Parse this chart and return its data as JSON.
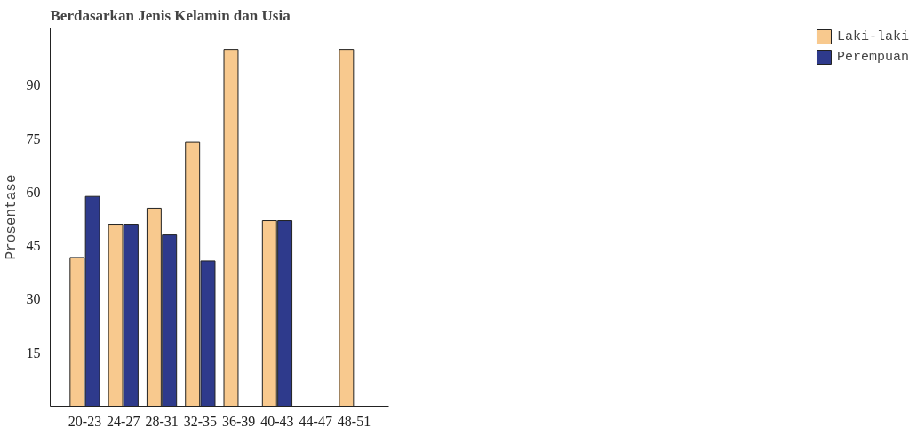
{
  "chart_data": {
    "type": "bar",
    "title": "Berdasarkan Jenis Kelamin dan Usia",
    "ylabel": "Prosentase",
    "categories": [
      "20-23",
      "24-27",
      "28-31",
      "32-35",
      "36-39",
      "40-43",
      "44-47",
      "48-51"
    ],
    "series": [
      {
        "name": "Laki-laki",
        "color": "#f8c98e",
        "values": [
          41.7,
          51,
          55.5,
          74,
          100,
          52,
          null,
          100
        ]
      },
      {
        "name": "Perempuan",
        "color": "#2e3a8c",
        "values": [
          58.8,
          51,
          48,
          40.7,
          null,
          52,
          null,
          null
        ]
      }
    ],
    "ylim": [
      0,
      106
    ],
    "yticks": [
      15,
      30,
      45,
      60,
      75,
      90
    ],
    "grid": false,
    "legend": "top right"
  }
}
